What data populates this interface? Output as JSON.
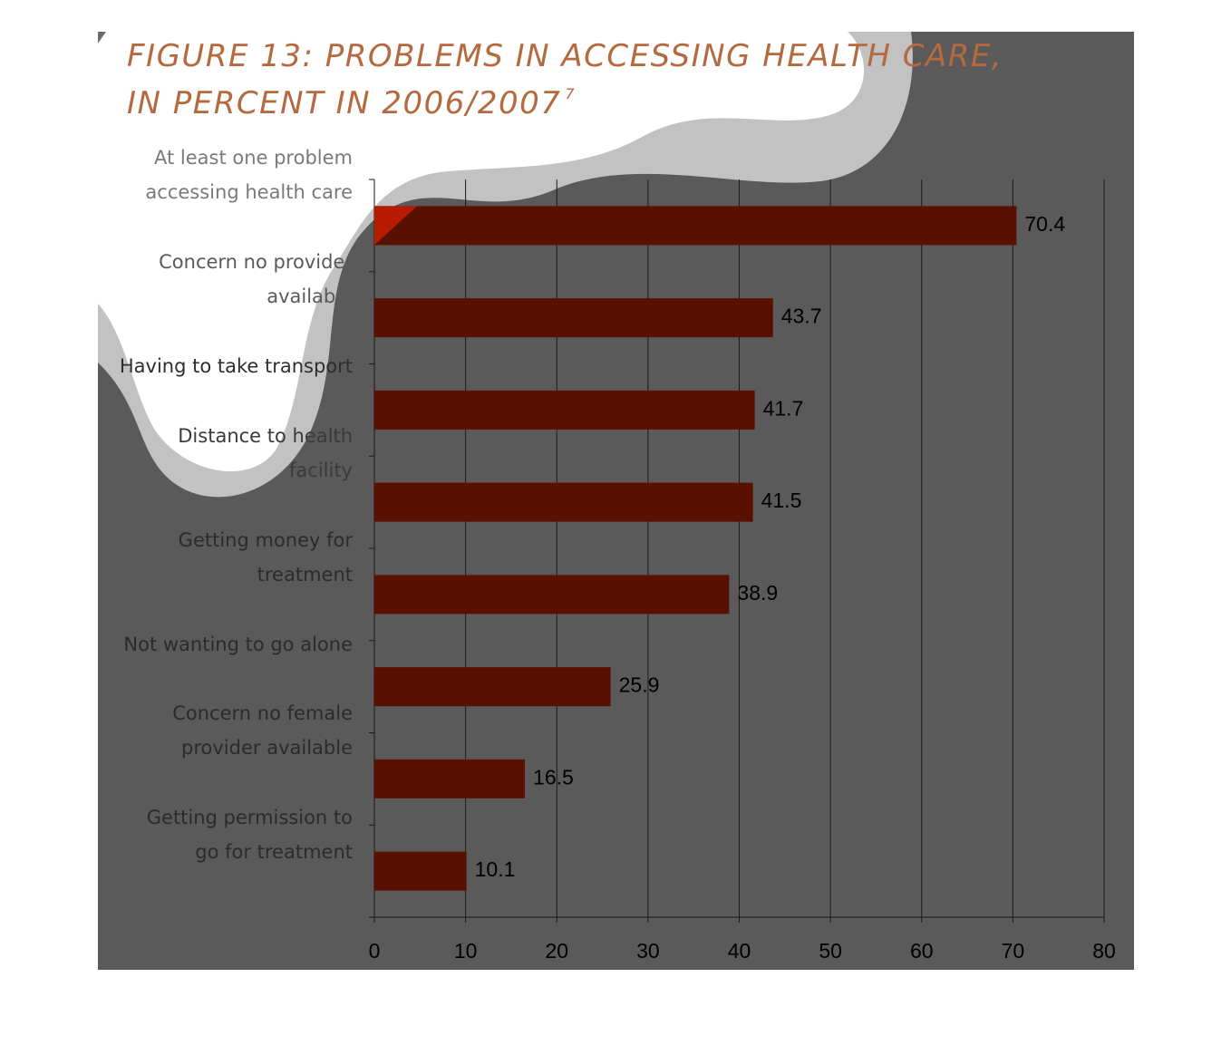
{
  "figure": {
    "title_line1": "FIGURE 13:  PROBLEMS IN ACCESSING HEALTH CARE,",
    "title_line2": "IN PERCENT  IN 2006/2007",
    "footnote_mark": "7"
  },
  "colors": {
    "background_panel": "#5a5a5a",
    "swoosh": "#c2c2c2",
    "bar": "#5a1000",
    "bar_highlight": "#b81c00",
    "title": "#b5693f",
    "gridline": "#1a1a1a"
  },
  "chart_data": {
    "type": "bar",
    "orientation": "horizontal",
    "categories": [
      "At least one problem\naccessing health care",
      "Concern no provider\navailable",
      "Having to take transport",
      "Distance to health\nfacility",
      "Getting money for\ntreatment",
      "Not wanting to go alone",
      "Concern no female\nprovider available",
      "Getting permission to\ngo for treatment"
    ],
    "values": [
      70.4,
      43.7,
      41.7,
      41.5,
      38.9,
      25.9,
      16.5,
      10.1
    ],
    "data_labels": [
      "70.4",
      "43.7",
      "41.7",
      "41.5",
      "38.9",
      "25.9",
      "16.5",
      "10.1"
    ],
    "xlim": [
      0,
      80
    ],
    "xticks": [
      "0",
      "10",
      "20",
      "30",
      "40",
      "50",
      "60",
      "70",
      "80"
    ],
    "grid": "vertical",
    "legend": "none"
  }
}
